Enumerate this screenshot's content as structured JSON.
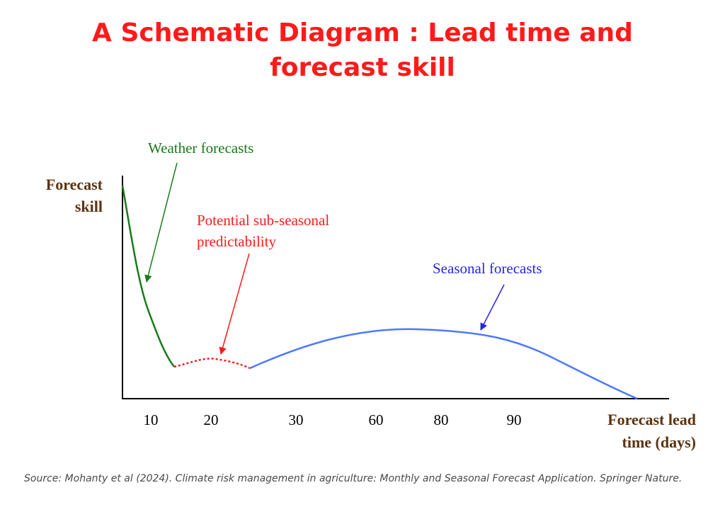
{
  "title": {
    "line1": "A Schematic Diagram : Lead time and",
    "line2": "forecast skill"
  },
  "axes": {
    "y_label_line1": "Forecast",
    "y_label_line2": "skill",
    "x_label_line1": "Forecast lead",
    "x_label_line2": "time (days)",
    "x_ticks": [
      "10",
      "20",
      "30",
      "60",
      "80",
      "90"
    ]
  },
  "annotations": {
    "weather": "Weather forecasts",
    "subseasonal_line1": "Potential sub-seasonal",
    "subseasonal_line2": "predictability",
    "seasonal": "Seasonal forecasts"
  },
  "colors": {
    "weather": "#1a7a1a",
    "subseasonal": "#ff1a1a",
    "seasonal": "#4d79ff",
    "seasonal_text": "#2626e6",
    "axis_text": "#5c3310",
    "title": "#ff1a1a"
  },
  "source": "Source: Mohanty et al (2024). Climate risk management in agriculture: Monthly and Seasonal Forecast Application. Springer Nature."
}
